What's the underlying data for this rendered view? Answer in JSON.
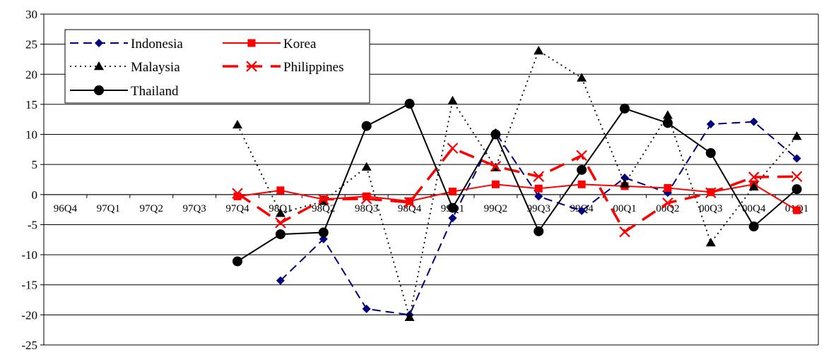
{
  "chart_data": {
    "type": "line",
    "title": "",
    "xlabel": "",
    "ylabel": "",
    "ylim": [
      -25,
      30
    ],
    "yticks": [
      30,
      25,
      20,
      15,
      10,
      5,
      0,
      -5,
      -10,
      -15,
      -20,
      -25
    ],
    "grid": true,
    "legend_position": "top-left",
    "categories": [
      "96Q4",
      "97Q1",
      "97Q2",
      "97Q3",
      "97Q4",
      "98Q1",
      "98Q2",
      "98Q3",
      "98Q4",
      "99Q1",
      "99Q2",
      "99Q3",
      "99Q4",
      "00Q1",
      "00Q2",
      "00Q3",
      "00Q4",
      "01Q1"
    ],
    "series": [
      {
        "name": "Indonesia",
        "color": "#000080",
        "line_style": "dashed",
        "marker": "diamond",
        "values": [
          null,
          null,
          null,
          null,
          null,
          -14.3,
          -7.4,
          -19.0,
          -20.0,
          -3.9,
          10.3,
          -0.3,
          -2.7,
          2.8,
          0.3,
          11.7,
          12.1,
          6.0
        ]
      },
      {
        "name": "Korea",
        "color": "#ff0000",
        "line_style": "solid",
        "marker": "square",
        "values": [
          null,
          null,
          null,
          null,
          -0.3,
          0.7,
          -0.8,
          -0.3,
          -1.1,
          0.5,
          1.7,
          1.0,
          1.7,
          1.4,
          1.1,
          0.4,
          1.7,
          -2.6
        ]
      },
      {
        "name": "Malaysia",
        "color": "#000000",
        "line_style": "dotted",
        "marker": "triangle",
        "values": [
          null,
          null,
          null,
          null,
          11.6,
          -3.1,
          -1.1,
          4.6,
          -20.4,
          15.6,
          4.5,
          23.9,
          19.4,
          1.8,
          13.2,
          -8.0,
          1.3,
          9.7
        ]
      },
      {
        "name": "Philippines",
        "color": "#ff0000",
        "line_style": "long-dash",
        "marker": "x",
        "values": [
          null,
          null,
          null,
          null,
          0.2,
          -4.7,
          -0.8,
          -0.7,
          -1.3,
          7.7,
          4.7,
          3.0,
          6.5,
          -6.2,
          -1.4,
          0.3,
          2.9,
          3.0
        ]
      },
      {
        "name": "Thailand",
        "color": "#000000",
        "line_style": "solid",
        "marker": "circle",
        "values": [
          null,
          null,
          null,
          null,
          -11.1,
          -6.6,
          -6.3,
          11.4,
          15.1,
          -2.2,
          10.0,
          -6.1,
          4.1,
          14.3,
          11.9,
          6.9,
          -5.3,
          0.9
        ]
      }
    ]
  }
}
